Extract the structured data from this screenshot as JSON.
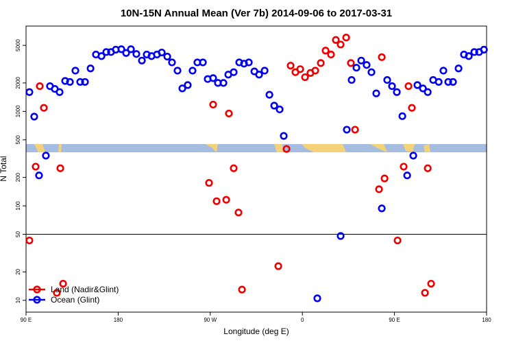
{
  "chart_data": {
    "type": "scatter",
    "title": "10N-15N Annual Mean (Ver 7b)   2014-09-06 to 2017-03-31",
    "x_label": "Longitude (deg E)",
    "y_label": "N Total",
    "log_y": true,
    "legend": "bottomleft",
    "hline": 50,
    "xlim": [
      90,
      540
    ],
    "ylim": [
      7.5,
      8000
    ],
    "xticks": [
      {
        "value": 90,
        "label": "90 E"
      },
      180,
      {
        "value": 270,
        "label": "90 W"
      },
      {
        "value": 360,
        "label": "0"
      },
      {
        "value": 450,
        "label": "90 E"
      },
      {
        "value": 540,
        "label": "180"
      }
    ],
    "yticks": [
      10,
      20,
      50,
      100,
      200,
      500,
      1000,
      2000,
      5000
    ],
    "series": [
      {
        "name": "Land (Nadir&Glint)",
        "color": "#ee0000",
        "x": [
          93.3,
          99.4,
          103.4,
          107.4,
          120.1,
          123.5,
          126.2,
          268.8,
          272.8,
          276.2,
          285.6,
          288.2,
          292.9,
          297.6,
          301.0,
          336.5,
          344.5,
          348.5,
          353.2,
          357.9,
          362.6,
          367.9,
          372.6,
          378.0,
          382.7,
          388.0,
          392.7,
          397.4,
          402.8,
          407.4,
          411.5,
          434.9,
          437.6,
          440.3,
          453.0,
          459.0,
          463.7,
          467.0,
          479.8,
          482.5,
          485.8
        ],
        "values": [
          43,
          260,
          1850,
          1090,
          12,
          250,
          15,
          175,
          1180,
          112,
          116,
          950,
          250,
          85,
          13,
          23,
          400,
          3050,
          2600,
          2800,
          2300,
          2550,
          2700,
          3250,
          4400,
          4000,
          5700,
          5100,
          6050,
          3250,
          640,
          150,
          3750,
          195,
          43,
          260,
          1850,
          1090,
          12,
          250,
          15
        ]
      },
      {
        "name": "Ocean (Glint)",
        "color": "#0000ee",
        "x": [
          93.3,
          98.0,
          102.7,
          109.4,
          113.4,
          118.1,
          122.8,
          128.2,
          132.9,
          138.2,
          142.9,
          147.6,
          153.0,
          158.3,
          163.7,
          168.4,
          173.0,
          177.7,
          183.1,
          187.8,
          192.5,
          197.8,
          203.2,
          207.9,
          212.6,
          217.9,
          222.6,
          228.0,
          232.6,
          238.0,
          242.7,
          248.0,
          252.7,
          257.4,
          262.8,
          267.5,
          272.8,
          277.5,
          282.9,
          287.6,
          292.9,
          298.3,
          303.0,
          307.7,
          313.1,
          317.7,
          323.1,
          327.8,
          332.5,
          337.8,
          341.8,
          374.6,
          397.4,
          403.4,
          408.1,
          412.8,
          417.5,
          422.8,
          427.5,
          432.2,
          437.6,
          442.9,
          447.6,
          452.3,
          457.7,
          462.4,
          468.4,
          472.4,
          477.8,
          482.5,
          487.8,
          493.2,
          497.8,
          502.5,
          507.2,
          512.6,
          517.9,
          522.6,
          528.0,
          532.7,
          537.4
        ],
        "values": [
          1600,
          880,
          210,
          340,
          1850,
          1730,
          1600,
          2100,
          2050,
          2700,
          2050,
          2050,
          2850,
          4000,
          3850,
          4250,
          4250,
          4500,
          4550,
          4150,
          4550,
          4050,
          3450,
          4000,
          3850,
          4000,
          4200,
          3800,
          3300,
          2700,
          1750,
          1900,
          2700,
          3300,
          3300,
          2200,
          2250,
          2000,
          2000,
          2450,
          2600,
          3300,
          3200,
          3300,
          2650,
          2450,
          2700,
          1500,
          1150,
          1050,
          550,
          10.5,
          48,
          640,
          2150,
          2900,
          3450,
          3100,
          2600,
          1550,
          94,
          2150,
          1850,
          1600,
          890,
          210,
          340,
          1900,
          1750,
          1600,
          2150,
          2050,
          2700,
          2050,
          2050,
          2850,
          4000,
          3850,
          4250,
          4250,
          4500
        ]
      }
    ]
  }
}
